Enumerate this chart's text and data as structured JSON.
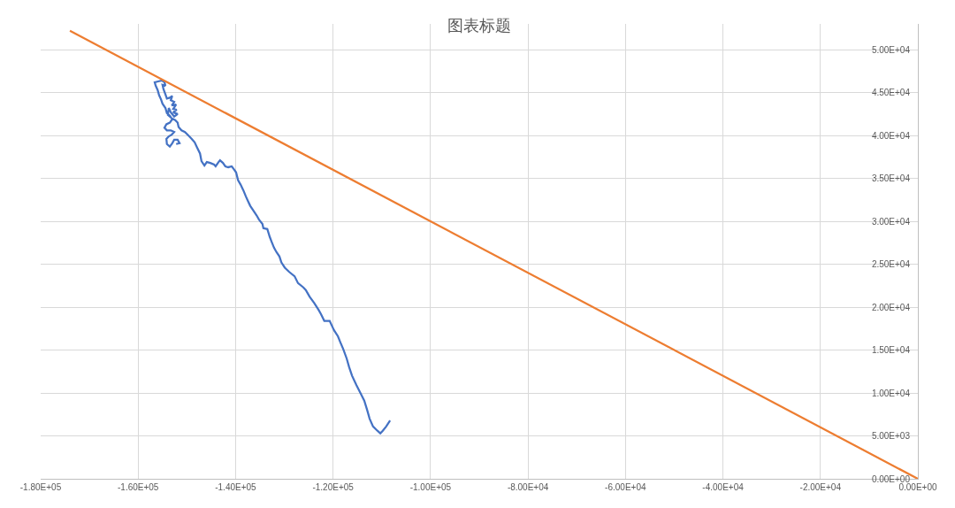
{
  "chart_data": {
    "type": "line",
    "title": "图表标题",
    "series": [
      {
        "color": "#4472c4",
        "x": [
          -152200,
          -151500,
          -151900,
          -152600,
          -153000,
          -153500,
          -154100,
          -154200,
          -153700,
          -153100,
          -152600,
          -153300,
          -154100,
          -154600,
          -154200,
          -153500,
          -153000,
          -153500,
          -154100,
          -154400,
          -155000,
          -155300,
          -155700,
          -156000,
          -156400,
          -156600,
          -155900,
          -155100,
          -154600,
          -154400,
          -155000,
          -154800,
          -154400,
          -154100,
          -153500,
          -153000,
          -153300,
          -152600,
          -153100,
          -152200,
          -152800,
          -152100,
          -152800,
          -151900,
          -152600,
          -153300,
          -153700,
          -153900,
          -153100,
          -152400,
          -151900,
          -151700,
          -151100,
          -150400,
          -149700,
          -149000,
          -148400,
          -147900,
          -147300,
          -147000,
          -146400,
          -145900,
          -145200,
          -144400,
          -144100,
          -143500,
          -143200,
          -142600,
          -142100,
          -141500,
          -140800,
          -140400,
          -139900,
          -139500,
          -139000,
          -138400,
          -137900,
          -137500,
          -137000,
          -136300,
          -135700,
          -135200,
          -134500,
          -134300,
          -133500,
          -133000,
          -132600,
          -132100,
          -131600,
          -131000,
          -130600,
          -129900,
          -129000,
          -127900,
          -127200,
          -126100,
          -125600,
          -124800,
          -123900,
          -123000,
          -122500,
          -121800,
          -120700,
          -120300,
          -119800,
          -119000,
          -118500,
          -117900,
          -117200,
          -116700,
          -116100,
          -115200,
          -114300,
          -113600,
          -113000,
          -112500,
          -111800,
          -110900,
          -110300,
          -109800,
          -109100,
          -108300
        ],
        "values": [
          39000,
          39100,
          39500,
          39500,
          39100,
          38700,
          39000,
          39600,
          39900,
          40100,
          40400,
          40600,
          40600,
          40900,
          41300,
          41500,
          41900,
          42300,
          42600,
          43200,
          43700,
          44200,
          44700,
          45300,
          45800,
          46200,
          46300,
          46400,
          46200,
          45800,
          45900,
          45400,
          44800,
          44300,
          44400,
          44600,
          44100,
          43900,
          43500,
          43600,
          43100,
          43000,
          42700,
          42500,
          42200,
          42700,
          43200,
          42400,
          42000,
          41800,
          41500,
          41000,
          40600,
          40400,
          40000,
          39600,
          39200,
          38600,
          37900,
          37000,
          36500,
          36900,
          36800,
          36600,
          36400,
          36900,
          37100,
          36800,
          36400,
          36300,
          36400,
          36100,
          35700,
          34800,
          34300,
          33600,
          32900,
          32400,
          31800,
          31200,
          30700,
          30200,
          29700,
          29200,
          29100,
          28200,
          27600,
          26900,
          26400,
          25900,
          25200,
          24600,
          24100,
          23600,
          22800,
          22300,
          22000,
          21200,
          20500,
          19700,
          19200,
          18400,
          18400,
          17900,
          17300,
          16600,
          15900,
          15100,
          14000,
          13000,
          12000,
          10900,
          9900,
          9100,
          8000,
          7000,
          6100,
          5600,
          5300,
          5600,
          6100,
          6800
        ]
      },
      {
        "color": "#ed7d31",
        "x": [
          -174000,
          0
        ],
        "values": [
          52200,
          0
        ]
      }
    ],
    "xlim": [
      -180000,
      0
    ],
    "ylim": [
      0,
      53000
    ],
    "xticks": [
      {
        "value": -180000,
        "label": "-1.80E+05"
      },
      {
        "value": -160000,
        "label": "-1.60E+05"
      },
      {
        "value": -140000,
        "label": "-1.40E+05"
      },
      {
        "value": -120000,
        "label": "-1.20E+05"
      },
      {
        "value": -100000,
        "label": "-1.00E+05"
      },
      {
        "value": -80000,
        "label": "-8.00E+04"
      },
      {
        "value": -60000,
        "label": "-6.00E+04"
      },
      {
        "value": -40000,
        "label": "-4.00E+04"
      },
      {
        "value": -20000,
        "label": "-2.00E+04"
      },
      {
        "value": 0,
        "label": "0.00E+00"
      }
    ],
    "yticks": [
      {
        "value": 0,
        "label": "0.00E+00"
      },
      {
        "value": 5000,
        "label": "5.00E+03"
      },
      {
        "value": 10000,
        "label": "1.00E+04"
      },
      {
        "value": 15000,
        "label": "1.50E+04"
      },
      {
        "value": 20000,
        "label": "2.00E+04"
      },
      {
        "value": 25000,
        "label": "2.50E+04"
      },
      {
        "value": 30000,
        "label": "3.00E+04"
      },
      {
        "value": 35000,
        "label": "3.50E+04"
      },
      {
        "value": 40000,
        "label": "4.00E+04"
      },
      {
        "value": 45000,
        "label": "4.50E+04"
      },
      {
        "value": 50000,
        "label": "5.00E+04"
      }
    ],
    "grid": true,
    "marker": "none",
    "line_style": "solid"
  }
}
